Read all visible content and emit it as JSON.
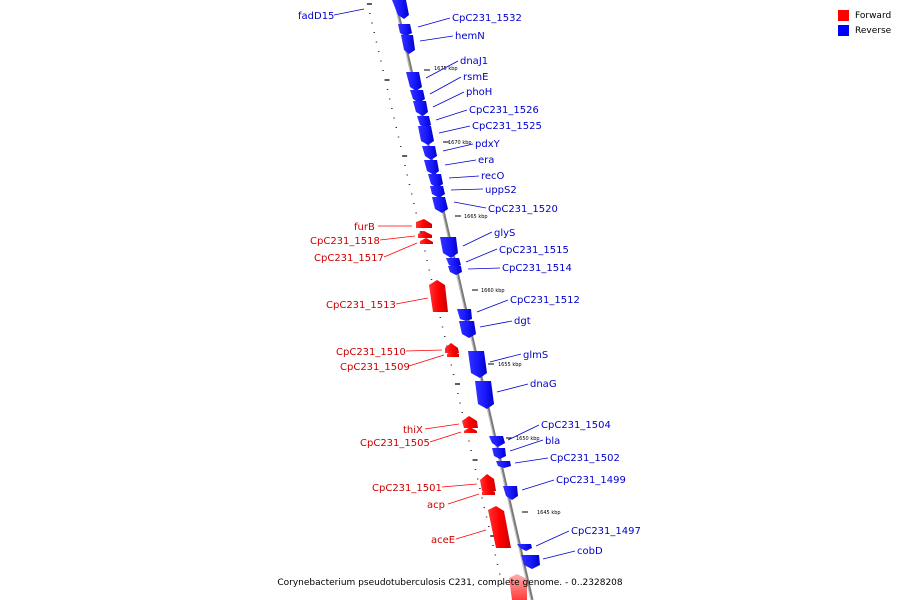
{
  "legend": {
    "forward_label": "Forward",
    "reverse_label": "Reverse",
    "forward_color": "#ff0000",
    "reverse_color": "#0000ff"
  },
  "caption": "Corynebacterium pseudotuberculosis C231, complete genome. - 0..2328208",
  "tick_labels": [
    "1675 kbp",
    "1670 kbp",
    "1665 kbp",
    "1660 kbp",
    "1655 kbp",
    "1650 kbp",
    "1645 kbp"
  ],
  "genes": {
    "reverse": [
      "fadD15",
      "CpC231_1532",
      "hemN",
      "dnaJ1",
      "rsmE",
      "phoH",
      "CpC231_1526",
      "CpC231_1525",
      "pdxY",
      "era",
      "recO",
      "uppS2",
      "CpC231_1520",
      "glyS",
      "CpC231_1515",
      "CpC231_1514",
      "CpC231_1512",
      "dgt",
      "glmS",
      "dnaG",
      "CpC231_1504",
      "bla",
      "CpC231_1502",
      "CpC231_1499",
      "CpC231_1497",
      "cobD"
    ],
    "forward": [
      "furB",
      "CpC231_1518",
      "CpC231_1517",
      "CpC231_1513",
      "CpC231_1510",
      "CpC231_1509",
      "thiX",
      "CpC231_1505",
      "CpC231_1501",
      "acp",
      "aceE"
    ]
  }
}
